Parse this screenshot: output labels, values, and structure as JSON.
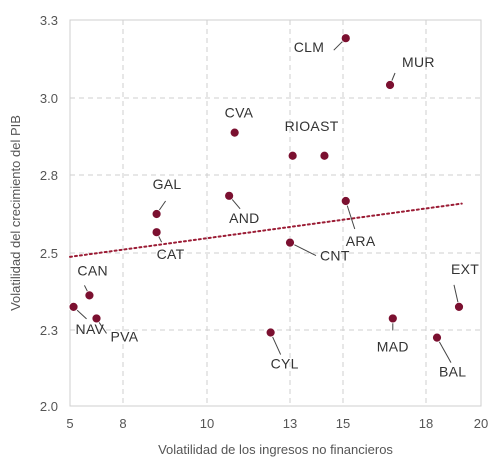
{
  "chart_data": {
    "type": "scatter",
    "xlabel": "Volatilidad de los ingresos no financieros",
    "ylabel": "Volatilidad del crecimiento del PIB",
    "xlim": [
      5,
      20
    ],
    "ylim": [
      2.0,
      3.3
    ],
    "x_ticks": [
      5,
      8,
      10,
      13,
      15,
      18,
      20
    ],
    "y_ticks": [
      2.0,
      2.3,
      2.5,
      2.8,
      3.0,
      3.3
    ],
    "x_tick_labels": [
      "5",
      "8",
      "10",
      "13",
      "15",
      "18",
      "20"
    ],
    "y_tick_labels": [
      "2.0",
      "2.3",
      "2.5",
      "2.8",
      "3.0",
      "3.3"
    ],
    "grid": true,
    "grid_style": "dashed",
    "marker_color": "#7b1030",
    "trendline": {
      "color": "#9b1c35",
      "style": "dotted",
      "x": [
        5,
        19.3
      ],
      "y": [
        2.49,
        2.69
      ]
    },
    "points": [
      {
        "label": "CLM",
        "x": 15.1,
        "y": 3.23
      },
      {
        "label": "MUR",
        "x": 16.7,
        "y": 3.05
      },
      {
        "label": "CVA",
        "x": 11.0,
        "y": 2.91
      },
      {
        "label": "RIOAST",
        "x": 13.1,
        "y": 2.85,
        "label_only": false
      },
      {
        "label": "",
        "x": 14.3,
        "y": 2.85
      },
      {
        "label": "GAL",
        "x": 8.8,
        "y": 2.65
      },
      {
        "label": "AND",
        "x": 10.8,
        "y": 2.72
      },
      {
        "label": "CAT",
        "x": 8.8,
        "y": 2.58
      },
      {
        "label": "ARA",
        "x": 15.1,
        "y": 2.7
      },
      {
        "label": "CNT",
        "x": 13.0,
        "y": 2.54
      },
      {
        "label": "CAN",
        "x": 6.1,
        "y": 2.39
      },
      {
        "label": "NAV",
        "x": 5.2,
        "y": 2.36
      },
      {
        "label": "PVA",
        "x": 6.5,
        "y": 2.33
      },
      {
        "label": "CYL",
        "x": 12.3,
        "y": 2.29
      },
      {
        "label": "MAD",
        "x": 16.8,
        "y": 2.33
      },
      {
        "label": "BAL",
        "x": 18.4,
        "y": 2.27
      },
      {
        "label": "EXT",
        "x": 19.2,
        "y": 2.36
      }
    ]
  }
}
